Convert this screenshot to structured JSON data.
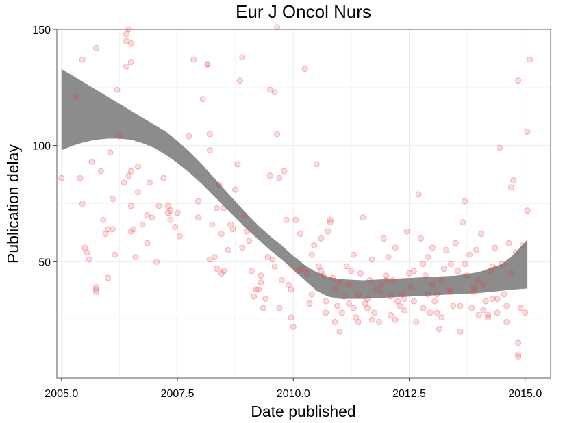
{
  "chart_data": {
    "type": "scatter",
    "title": "Eur J Oncol Nurs",
    "xlabel": "Date published",
    "ylabel": "Publication delay",
    "xlim": [
      2004.9,
      2015.55
    ],
    "ylim": [
      0,
      150
    ],
    "x_ticks": [
      2005.0,
      2007.5,
      2010.0,
      2012.5,
      2015.0
    ],
    "x_tick_labels": [
      "2005.0",
      "2007.5",
      "2010.0",
      "2012.5",
      "2015.0"
    ],
    "y_ticks": [
      50,
      100,
      150
    ],
    "y_tick_labels": [
      "50",
      "100",
      "150"
    ],
    "grid": true,
    "point_color": "#e8393b",
    "band_color": "#808080",
    "smooth_band": [
      {
        "x": 2005.0,
        "lower": 98,
        "upper": 133
      },
      {
        "x": 2005.25,
        "lower": 100,
        "upper": 130
      },
      {
        "x": 2005.5,
        "lower": 101.5,
        "upper": 127
      },
      {
        "x": 2005.75,
        "lower": 102.5,
        "upper": 124
      },
      {
        "x": 2006.0,
        "lower": 103,
        "upper": 121
      },
      {
        "x": 2006.25,
        "lower": 103,
        "upper": 118
      },
      {
        "x": 2006.5,
        "lower": 102.5,
        "upper": 115
      },
      {
        "x": 2006.75,
        "lower": 101,
        "upper": 112
      },
      {
        "x": 2007.0,
        "lower": 99,
        "upper": 109
      },
      {
        "x": 2007.25,
        "lower": 96,
        "upper": 106
      },
      {
        "x": 2007.5,
        "lower": 92.5,
        "upper": 102
      },
      {
        "x": 2007.75,
        "lower": 88.5,
        "upper": 97.5
      },
      {
        "x": 2008.0,
        "lower": 84,
        "upper": 92.5
      },
      {
        "x": 2008.25,
        "lower": 79,
        "upper": 87
      },
      {
        "x": 2008.5,
        "lower": 74,
        "upper": 81.5
      },
      {
        "x": 2008.75,
        "lower": 69,
        "upper": 76
      },
      {
        "x": 2009.0,
        "lower": 64,
        "upper": 70.5
      },
      {
        "x": 2009.25,
        "lower": 59.5,
        "upper": 65.5
      },
      {
        "x": 2009.5,
        "lower": 55,
        "upper": 61
      },
      {
        "x": 2009.75,
        "lower": 51,
        "upper": 57
      },
      {
        "x": 2010.0,
        "lower": 46.5,
        "upper": 52.5
      },
      {
        "x": 2010.25,
        "lower": 42,
        "upper": 48.5
      },
      {
        "x": 2010.5,
        "lower": 37.5,
        "upper": 45.5
      },
      {
        "x": 2010.75,
        "lower": 35,
        "upper": 43.5
      },
      {
        "x": 2011.0,
        "lower": 34,
        "upper": 42.5
      },
      {
        "x": 2011.5,
        "lower": 34,
        "upper": 42
      },
      {
        "x": 2012.0,
        "lower": 34.5,
        "upper": 42.5
      },
      {
        "x": 2012.5,
        "lower": 35,
        "upper": 43
      },
      {
        "x": 2013.0,
        "lower": 35.5,
        "upper": 43.5
      },
      {
        "x": 2013.5,
        "lower": 36,
        "upper": 44
      },
      {
        "x": 2014.0,
        "lower": 36.5,
        "upper": 45.5
      },
      {
        "x": 2014.5,
        "lower": 37.5,
        "upper": 49
      },
      {
        "x": 2014.75,
        "lower": 38,
        "upper": 53
      },
      {
        "x": 2015.05,
        "lower": 38.5,
        "upper": 59.5
      }
    ],
    "points": [
      [
        2005.0,
        86
      ],
      [
        2005.3,
        121
      ],
      [
        2005.45,
        137
      ],
      [
        2005.4,
        86
      ],
      [
        2005.45,
        75
      ],
      [
        2005.5,
        56
      ],
      [
        2005.55,
        54
      ],
      [
        2005.6,
        51
      ],
      [
        2005.65,
        93
      ],
      [
        2005.75,
        142
      ],
      [
        2005.75,
        39
      ],
      [
        2005.75,
        37
      ],
      [
        2005.75,
        38
      ],
      [
        2005.85,
        89
      ],
      [
        2005.9,
        68
      ],
      [
        2005.95,
        62
      ],
      [
        2006.0,
        64
      ],
      [
        2006.0,
        43
      ],
      [
        2006.05,
        97
      ],
      [
        2006.1,
        64
      ],
      [
        2006.1,
        77
      ],
      [
        2006.15,
        53
      ],
      [
        2006.2,
        124
      ],
      [
        2006.25,
        104
      ],
      [
        2006.35,
        84
      ],
      [
        2006.4,
        148
      ],
      [
        2006.45,
        150
      ],
      [
        2006.4,
        145
      ],
      [
        2006.4,
        134
      ],
      [
        2006.5,
        144
      ],
      [
        2006.45,
        87
      ],
      [
        2006.5,
        89
      ],
      [
        2006.5,
        74
      ],
      [
        2006.5,
        63
      ],
      [
        2006.5,
        136
      ],
      [
        2006.55,
        64
      ],
      [
        2006.6,
        52
      ],
      [
        2006.65,
        91
      ],
      [
        2006.65,
        80
      ],
      [
        2006.75,
        66
      ],
      [
        2006.85,
        70
      ],
      [
        2006.85,
        58
      ],
      [
        2006.9,
        84
      ],
      [
        2006.95,
        69
      ],
      [
        2007.05,
        50
      ],
      [
        2007.1,
        74
      ],
      [
        2007.2,
        86
      ],
      [
        2007.3,
        74
      ],
      [
        2007.3,
        71
      ],
      [
        2007.35,
        72
      ],
      [
        2007.35,
        68
      ],
      [
        2007.45,
        65
      ],
      [
        2007.5,
        71
      ],
      [
        2007.55,
        61
      ],
      [
        2007.75,
        104
      ],
      [
        2007.85,
        137
      ],
      [
        2007.95,
        76
      ],
      [
        2007.95,
        69
      ],
      [
        2008.05,
        120
      ],
      [
        2008.15,
        135
      ],
      [
        2008.15,
        135
      ],
      [
        2008.2,
        105
      ],
      [
        2008.2,
        98
      ],
      [
        2008.2,
        51
      ],
      [
        2008.25,
        66
      ],
      [
        2008.3,
        52
      ],
      [
        2008.35,
        47
      ],
      [
        2008.35,
        73
      ],
      [
        2008.4,
        83
      ],
      [
        2008.45,
        62
      ],
      [
        2008.45,
        45
      ],
      [
        2008.5,
        46
      ],
      [
        2008.5,
        73
      ],
      [
        2008.6,
        55
      ],
      [
        2008.65,
        66
      ],
      [
        2008.7,
        64
      ],
      [
        2008.75,
        81
      ],
      [
        2008.8,
        92
      ],
      [
        2008.85,
        128
      ],
      [
        2008.9,
        138
      ],
      [
        2008.9,
        56
      ],
      [
        2008.95,
        70
      ],
      [
        2009.0,
        63
      ],
      [
        2009.05,
        59
      ],
      [
        2009.1,
        46
      ],
      [
        2009.15,
        35
      ],
      [
        2009.2,
        38
      ],
      [
        2009.25,
        38
      ],
      [
        2009.3,
        44
      ],
      [
        2009.35,
        30
      ],
      [
        2009.4,
        34
      ],
      [
        2009.45,
        52
      ],
      [
        2009.5,
        124
      ],
      [
        2009.5,
        87
      ],
      [
        2009.55,
        51
      ],
      [
        2009.6,
        123
      ],
      [
        2009.6,
        48
      ],
      [
        2009.65,
        151
      ],
      [
        2009.65,
        105
      ],
      [
        2009.7,
        86
      ],
      [
        2009.75,
        42
      ],
      [
        2009.8,
        89
      ],
      [
        2009.85,
        68
      ],
      [
        2009.9,
        40
      ],
      [
        2009.95,
        38
      ],
      [
        2009.95,
        26
      ],
      [
        2010.0,
        22
      ],
      [
        2010.05,
        68
      ],
      [
        2010.1,
        46
      ],
      [
        2010.15,
        62
      ],
      [
        2010.2,
        47
      ],
      [
        2010.25,
        133
      ],
      [
        2010.3,
        45
      ],
      [
        2010.35,
        32
      ],
      [
        2010.4,
        53
      ],
      [
        2010.45,
        57
      ],
      [
        2010.5,
        92
      ],
      [
        2010.55,
        48
      ],
      [
        2010.6,
        60
      ],
      [
        2010.65,
        44
      ],
      [
        2010.7,
        33
      ],
      [
        2010.75,
        63
      ],
      [
        2010.8,
        68
      ],
      [
        2010.85,
        43
      ],
      [
        2010.9,
        24
      ],
      [
        2010.95,
        31
      ],
      [
        2011.0,
        20
      ],
      [
        2011.05,
        28
      ],
      [
        2011.1,
        35
      ],
      [
        2011.15,
        48
      ],
      [
        2011.2,
        40
      ],
      [
        2011.25,
        46
      ],
      [
        2011.3,
        30
      ],
      [
        2011.35,
        26
      ],
      [
        2011.4,
        24
      ],
      [
        2011.45,
        45
      ],
      [
        2011.5,
        69
      ],
      [
        2011.55,
        32
      ],
      [
        2011.6,
        34
      ],
      [
        2011.65,
        42
      ],
      [
        2011.7,
        51
      ],
      [
        2011.75,
        28
      ],
      [
        2011.8,
        38
      ],
      [
        2011.85,
        24
      ],
      [
        2011.9,
        40
      ],
      [
        2011.95,
        60
      ],
      [
        2012.0,
        44
      ],
      [
        2012.05,
        52
      ],
      [
        2012.1,
        35
      ],
      [
        2012.15,
        42
      ],
      [
        2012.2,
        56
      ],
      [
        2012.25,
        33
      ],
      [
        2012.3,
        31
      ],
      [
        2012.35,
        36
      ],
      [
        2012.4,
        29
      ],
      [
        2012.45,
        63
      ],
      [
        2012.5,
        45
      ],
      [
        2012.55,
        39
      ],
      [
        2012.6,
        46
      ],
      [
        2012.65,
        24
      ],
      [
        2012.7,
        79
      ],
      [
        2012.75,
        60
      ],
      [
        2012.8,
        30
      ],
      [
        2012.85,
        44
      ],
      [
        2012.9,
        52
      ],
      [
        2012.95,
        28
      ],
      [
        2013.0,
        56
      ],
      [
        2013.05,
        33
      ],
      [
        2013.1,
        36
      ],
      [
        2013.15,
        21
      ],
      [
        2013.2,
        42
      ],
      [
        2013.25,
        47
      ],
      [
        2013.3,
        55
      ],
      [
        2013.35,
        38
      ],
      [
        2013.4,
        49
      ],
      [
        2013.45,
        31
      ],
      [
        2013.5,
        58
      ],
      [
        2013.55,
        46
      ],
      [
        2013.6,
        20
      ],
      [
        2013.65,
        67
      ],
      [
        2013.7,
        76
      ],
      [
        2013.75,
        44
      ],
      [
        2013.8,
        53
      ],
      [
        2013.85,
        30
      ],
      [
        2013.9,
        39
      ],
      [
        2013.95,
        55
      ],
      [
        2014.0,
        27
      ],
      [
        2014.05,
        62
      ],
      [
        2014.1,
        40
      ],
      [
        2014.15,
        33
      ],
      [
        2014.2,
        26
      ],
      [
        2014.25,
        46
      ],
      [
        2014.3,
        34
      ],
      [
        2014.35,
        56
      ],
      [
        2014.4,
        28
      ],
      [
        2014.45,
        99
      ],
      [
        2014.5,
        49
      ],
      [
        2014.55,
        36
      ],
      [
        2014.6,
        24
      ],
      [
        2014.65,
        58
      ],
      [
        2014.7,
        82
      ],
      [
        2014.75,
        85
      ],
      [
        2014.8,
        54
      ],
      [
        2014.85,
        128
      ],
      [
        2014.85,
        15
      ],
      [
        2014.85,
        10
      ],
      [
        2014.85,
        9
      ],
      [
        2014.9,
        30
      ],
      [
        2014.95,
        57
      ],
      [
        2015.0,
        28
      ],
      [
        2015.05,
        72
      ],
      [
        2015.05,
        106
      ],
      [
        2015.1,
        137
      ],
      [
        2010.8,
        67
      ],
      [
        2011.2,
        32
      ],
      [
        2011.6,
        30
      ],
      [
        2012.1,
        27
      ],
      [
        2012.6,
        33
      ],
      [
        2013.1,
        28
      ],
      [
        2013.6,
        31
      ],
      [
        2014.1,
        29
      ],
      [
        2014.6,
        31
      ],
      [
        2010.4,
        36
      ],
      [
        2010.9,
        38
      ],
      [
        2011.4,
        36
      ],
      [
        2011.9,
        37
      ],
      [
        2012.4,
        34
      ],
      [
        2012.9,
        36
      ],
      [
        2013.4,
        37
      ],
      [
        2013.9,
        37
      ],
      [
        2014.4,
        34
      ],
      [
        2009.7,
        30
      ],
      [
        2009.3,
        41
      ],
      [
        2010.7,
        28
      ],
      [
        2011.7,
        25
      ],
      [
        2012.2,
        25
      ],
      [
        2013.2,
        26
      ],
      [
        2014.2,
        27
      ],
      [
        2011.3,
        53
      ],
      [
        2012.8,
        49
      ],
      [
        2013.7,
        49
      ],
      [
        2014.3,
        48
      ],
      [
        2010.6,
        46
      ],
      [
        2011.0,
        41
      ],
      [
        2012.0,
        42
      ],
      [
        2013.0,
        40
      ],
      [
        2014.0,
        42
      ],
      [
        2014.7,
        45
      ]
    ]
  }
}
